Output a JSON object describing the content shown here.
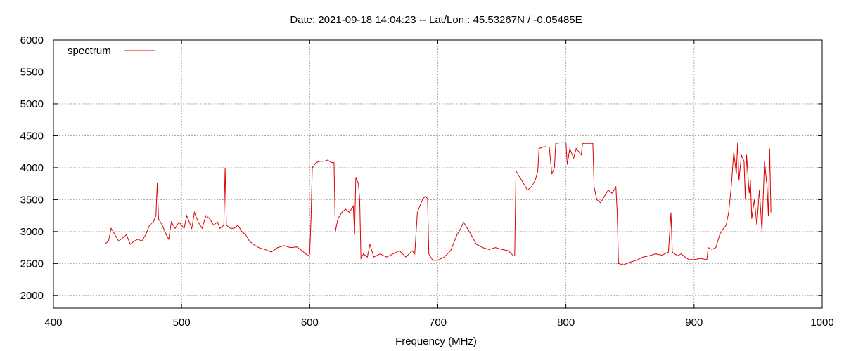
{
  "chart_data": {
    "type": "line",
    "title": "Date: 2021-09-18 14:04:23  --  Lat/Lon : 45.53267N / -0.05485E",
    "xlabel": "Frequency (MHz)",
    "ylabel": "",
    "xlim": [
      400,
      1000
    ],
    "ylim": [
      1800,
      6000
    ],
    "xticks": [
      400,
      500,
      600,
      700,
      800,
      900,
      1000
    ],
    "yticks": [
      2000,
      2500,
      3000,
      3500,
      4000,
      4500,
      5000,
      5500,
      6000
    ],
    "grid": true,
    "legend_position": "top-left",
    "series": [
      {
        "name": "spectrum",
        "color": "#dd0000",
        "points": [
          [
            440,
            2800
          ],
          [
            443,
            2850
          ],
          [
            445,
            3050
          ],
          [
            448,
            2950
          ],
          [
            451,
            2850
          ],
          [
            454,
            2900
          ],
          [
            457,
            2950
          ],
          [
            460,
            2800
          ],
          [
            463,
            2850
          ],
          [
            466,
            2880
          ],
          [
            469,
            2850
          ],
          [
            472,
            2950
          ],
          [
            475,
            3100
          ],
          [
            478,
            3150
          ],
          [
            480,
            3250
          ],
          [
            481,
            3760
          ],
          [
            482,
            3200
          ],
          [
            485,
            3100
          ],
          [
            488,
            2950
          ],
          [
            490,
            2880
          ],
          [
            492,
            3150
          ],
          [
            495,
            3050
          ],
          [
            498,
            3150
          ],
          [
            500,
            3100
          ],
          [
            502,
            3050
          ],
          [
            504,
            3250
          ],
          [
            506,
            3150
          ],
          [
            508,
            3050
          ],
          [
            510,
            3300
          ],
          [
            513,
            3150
          ],
          [
            516,
            3050
          ],
          [
            519,
            3250
          ],
          [
            522,
            3200
          ],
          [
            525,
            3100
          ],
          [
            528,
            3150
          ],
          [
            530,
            3050
          ],
          [
            533,
            3100
          ],
          [
            534,
            4000
          ],
          [
            535,
            3100
          ],
          [
            538,
            3050
          ],
          [
            541,
            3050
          ],
          [
            544,
            3100
          ],
          [
            547,
            3000
          ],
          [
            550,
            2950
          ],
          [
            553,
            2850
          ],
          [
            556,
            2800
          ],
          [
            560,
            2750
          ],
          [
            565,
            2720
          ],
          [
            570,
            2680
          ],
          [
            575,
            2750
          ],
          [
            580,
            2780
          ],
          [
            585,
            2750
          ],
          [
            590,
            2760
          ],
          [
            594,
            2700
          ],
          [
            597,
            2650
          ],
          [
            599,
            2620
          ],
          [
            600,
            2650
          ],
          [
            601,
            3200
          ],
          [
            602,
            4000
          ],
          [
            605,
            4080
          ],
          [
            608,
            4100
          ],
          [
            611,
            4100
          ],
          [
            614,
            4120
          ],
          [
            617,
            4080
          ],
          [
            619,
            4080
          ],
          [
            620,
            3000
          ],
          [
            622,
            3200
          ],
          [
            625,
            3300
          ],
          [
            628,
            3350
          ],
          [
            631,
            3300
          ],
          [
            634,
            3400
          ],
          [
            635,
            2950
          ],
          [
            636,
            3850
          ],
          [
            638,
            3750
          ],
          [
            639,
            3500
          ],
          [
            640,
            2580
          ],
          [
            642,
            2650
          ],
          [
            645,
            2600
          ],
          [
            647,
            2800
          ],
          [
            650,
            2600
          ],
          [
            655,
            2650
          ],
          [
            660,
            2600
          ],
          [
            665,
            2650
          ],
          [
            670,
            2700
          ],
          [
            675,
            2600
          ],
          [
            680,
            2700
          ],
          [
            682,
            2650
          ],
          [
            684,
            3300
          ],
          [
            686,
            3400
          ],
          [
            688,
            3500
          ],
          [
            690,
            3550
          ],
          [
            692,
            3520
          ],
          [
            693,
            2650
          ],
          [
            696,
            2550
          ],
          [
            700,
            2550
          ],
          [
            705,
            2600
          ],
          [
            710,
            2700
          ],
          [
            715,
            2950
          ],
          [
            718,
            3050
          ],
          [
            720,
            3150
          ],
          [
            723,
            3050
          ],
          [
            726,
            2950
          ],
          [
            730,
            2800
          ],
          [
            735,
            2750
          ],
          [
            740,
            2720
          ],
          [
            745,
            2750
          ],
          [
            750,
            2720
          ],
          [
            755,
            2700
          ],
          [
            759,
            2620
          ],
          [
            760,
            2620
          ],
          [
            761,
            3950
          ],
          [
            764,
            3850
          ],
          [
            767,
            3750
          ],
          [
            770,
            3650
          ],
          [
            773,
            3700
          ],
          [
            776,
            3800
          ],
          [
            778,
            3950
          ],
          [
            779,
            4300
          ],
          [
            783,
            4330
          ],
          [
            787,
            4320
          ],
          [
            789,
            3900
          ],
          [
            791,
            4000
          ],
          [
            792,
            4380
          ],
          [
            796,
            4390
          ],
          [
            800,
            4390
          ],
          [
            801,
            4050
          ],
          [
            803,
            4300
          ],
          [
            806,
            4150
          ],
          [
            808,
            4300
          ],
          [
            810,
            4250
          ],
          [
            812,
            4200
          ],
          [
            813,
            4380
          ],
          [
            817,
            4380
          ],
          [
            821,
            4380
          ],
          [
            822,
            3700
          ],
          [
            824,
            3500
          ],
          [
            827,
            3450
          ],
          [
            830,
            3550
          ],
          [
            833,
            3650
          ],
          [
            836,
            3600
          ],
          [
            839,
            3700
          ],
          [
            840,
            3300
          ],
          [
            841,
            2500
          ],
          [
            845,
            2480
          ],
          [
            850,
            2520
          ],
          [
            855,
            2550
          ],
          [
            860,
            2600
          ],
          [
            865,
            2620
          ],
          [
            870,
            2650
          ],
          [
            875,
            2630
          ],
          [
            880,
            2680
          ],
          [
            882,
            3300
          ],
          [
            883,
            2680
          ],
          [
            887,
            2620
          ],
          [
            890,
            2650
          ],
          [
            893,
            2600
          ],
          [
            896,
            2560
          ],
          [
            900,
            2560
          ],
          [
            905,
            2580
          ],
          [
            910,
            2560
          ],
          [
            911,
            2750
          ],
          [
            914,
            2720
          ],
          [
            917,
            2750
          ],
          [
            920,
            2950
          ],
          [
            923,
            3050
          ],
          [
            925,
            3100
          ],
          [
            927,
            3300
          ],
          [
            929,
            3700
          ],
          [
            931,
            4250
          ],
          [
            933,
            3900
          ],
          [
            934,
            4400
          ],
          [
            935,
            3800
          ],
          [
            937,
            4200
          ],
          [
            939,
            4100
          ],
          [
            940,
            3500
          ],
          [
            941,
            4200
          ],
          [
            943,
            3600
          ],
          [
            944,
            3800
          ],
          [
            945,
            3200
          ],
          [
            947,
            3500
          ],
          [
            949,
            3100
          ],
          [
            951,
            3650
          ],
          [
            953,
            3000
          ],
          [
            955,
            4100
          ],
          [
            957,
            3700
          ],
          [
            958,
            3250
          ],
          [
            959,
            4300
          ],
          [
            960,
            3300
          ]
        ]
      }
    ]
  }
}
